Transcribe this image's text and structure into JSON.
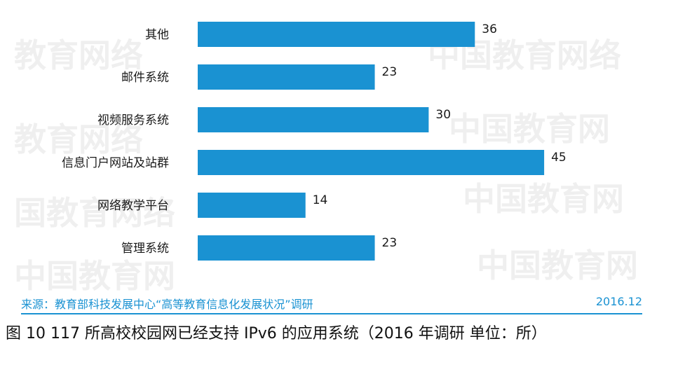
{
  "chart_data": {
    "type": "bar",
    "orientation": "horizontal",
    "categories": [
      "其他",
      "邮件系统",
      "视频服务系统",
      "信息门户网站及站群",
      "网络教学平台",
      "管理系统"
    ],
    "values": [
      36,
      23,
      30,
      45,
      14,
      23
    ],
    "bar_color": "#1a92d2",
    "grid": false,
    "legend": "none"
  },
  "source": "来源：教育部科技发展中心“高等教育信息化发展状况”调研",
  "date": "2016.12",
  "caption": "图 10 117 所高校校园网已经支持 IPv6 的应用系统（2016 年调研  单位：所）",
  "colors": {
    "accent": "#1a92d2",
    "text": "#1a1a1a"
  }
}
